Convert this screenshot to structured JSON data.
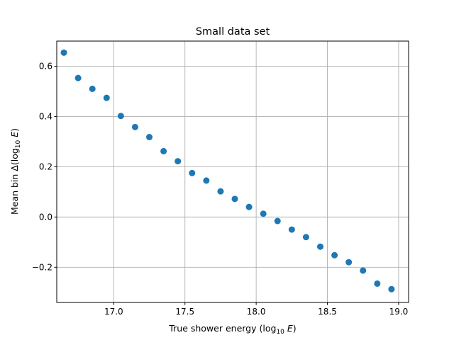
{
  "chart_data": {
    "type": "scatter",
    "title": "Small data set",
    "xlabel": "True shower energy (log",
    "xlabel_sub": "10",
    "xlabel_var": "E",
    "ylabel": "Mean bin Δ(log",
    "ylabel_sub": "10",
    "ylabel_var": "E",
    "xlim": [
      16.6,
      19.07
    ],
    "ylim": [
      -0.34,
      0.7
    ],
    "xticks": [
      17.0,
      17.5,
      18.0,
      18.5,
      19.0
    ],
    "xtick_labels": [
      "17.0",
      "17.5",
      "18.0",
      "18.5",
      "19.0"
    ],
    "yticks": [
      -0.2,
      0.0,
      0.2,
      0.4,
      0.6
    ],
    "ytick_labels": [
      "−0.2",
      "0.0",
      "0.2",
      "0.4",
      "0.6"
    ],
    "grid": true,
    "marker_color": "#1f77b4",
    "series": [
      {
        "x": [
          16.65,
          16.75,
          16.85,
          16.95,
          17.05,
          17.15,
          17.25,
          17.35,
          17.45,
          17.55,
          17.65,
          17.75,
          17.85,
          17.95,
          18.05,
          18.15,
          18.25,
          18.35,
          18.45,
          18.55,
          18.65,
          18.75,
          18.85,
          18.95
        ],
        "y": [
          0.654,
          0.553,
          0.51,
          0.474,
          0.402,
          0.358,
          0.318,
          0.262,
          0.222,
          0.175,
          0.145,
          0.102,
          0.072,
          0.04,
          0.013,
          -0.016,
          -0.05,
          -0.08,
          -0.118,
          -0.152,
          -0.18,
          -0.213,
          -0.265,
          -0.287
        ]
      }
    ]
  }
}
